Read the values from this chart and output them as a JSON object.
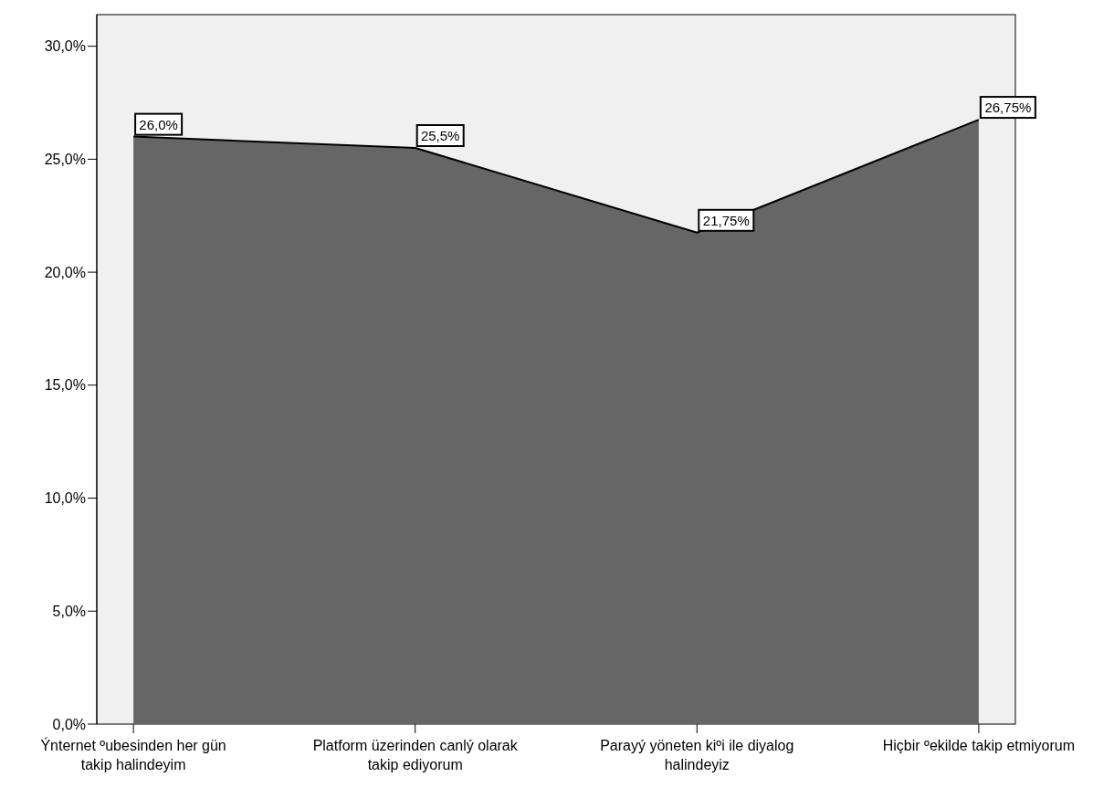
{
  "chart_data": {
    "type": "area",
    "categories": [
      "Ýnternet ºubesinden her gün takip halindeyim",
      "Platform üzerinden canlý olarak takip ediyorum",
      "Parayý yöneten kiºi ile diyalog halindeyiz",
      "Hiçbir ºekilde takip etmiyorum"
    ],
    "series": [
      {
        "color": "#666666",
        "values": [
          26.0,
          25.5,
          21.75,
          26.75
        ]
      }
    ],
    "value_labels": [
      "26,0%",
      "25,5%",
      "21,75%",
      "26,75%"
    ],
    "ylim": [
      0,
      31.4
    ],
    "yticks": [
      {
        "value": 0,
        "label": "0,0%"
      },
      {
        "value": 5,
        "label": "5,0%"
      },
      {
        "value": 10,
        "label": "10,0%"
      },
      {
        "value": 15,
        "label": "15,0%"
      },
      {
        "value": 20,
        "label": "20,0%"
      },
      {
        "value": 25,
        "label": "25,0%"
      },
      {
        "value": 30,
        "label": "30,0%"
      }
    ],
    "grid": false
  }
}
